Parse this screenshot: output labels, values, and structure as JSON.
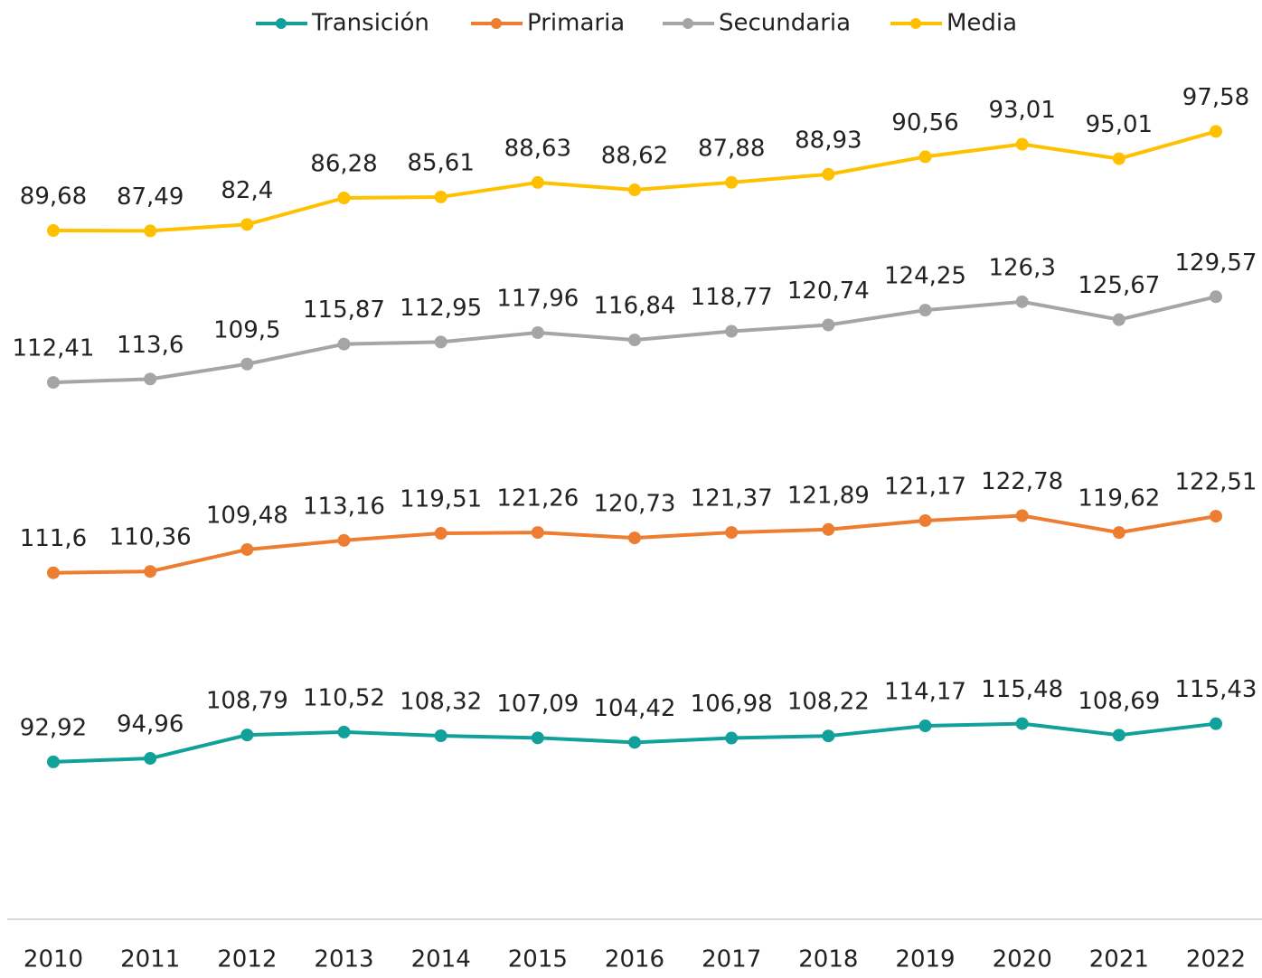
{
  "chart_data": {
    "type": "line",
    "stacked": true,
    "categories": [
      "2010",
      "2011",
      "2012",
      "2013",
      "2014",
      "2015",
      "2016",
      "2017",
      "2018",
      "2019",
      "2020",
      "2021",
      "2022"
    ],
    "ylim": [
      0,
      500
    ],
    "legend": "top",
    "series": [
      {
        "name": "Transición",
        "color": "#12a19a",
        "values": [
          92.92,
          94.96,
          108.79,
          110.52,
          108.32,
          107.09,
          104.42,
          106.98,
          108.22,
          114.17,
          115.48,
          108.69,
          115.43
        ],
        "value_labels": [
          "92,92",
          "94,96",
          "108,79",
          "110,52",
          "108,32",
          "107,09",
          "104,42",
          "106,98",
          "108,22",
          "114,17",
          "115,48",
          "108,69",
          "115,43"
        ]
      },
      {
        "name": "Primaria",
        "color": "#ed7d31",
        "values": [
          111.6,
          110.36,
          109.48,
          113.16,
          119.51,
          121.26,
          120.73,
          121.37,
          121.89,
          121.17,
          122.78,
          119.62,
          122.51
        ],
        "value_labels": [
          "111,6",
          "110,36",
          "109,48",
          "113,16",
          "119,51",
          "121,26",
          "120,73",
          "121,37",
          "121,89",
          "121,17",
          "122,78",
          "119,62",
          "122,51"
        ]
      },
      {
        "name": "Secundaria",
        "color": "#a5a5a5",
        "values": [
          112.41,
          113.6,
          109.5,
          115.87,
          112.95,
          117.96,
          116.84,
          118.77,
          120.74,
          124.25,
          126.3,
          125.67,
          129.57
        ],
        "value_labels": [
          "112,41",
          "113,6",
          "109,5",
          "115,87",
          "112,95",
          "117,96",
          "116,84",
          "118,77",
          "120,74",
          "124,25",
          "126,3",
          "125,67",
          "129,57"
        ]
      },
      {
        "name": "Media",
        "color": "#ffc000",
        "values": [
          89.68,
          87.49,
          82.4,
          86.28,
          85.61,
          88.63,
          88.62,
          87.88,
          88.93,
          90.56,
          93.01,
          95.01,
          97.58
        ],
        "value_labels": [
          "89,68",
          "87,49",
          "82,4",
          "86,28",
          "85,61",
          "88,63",
          "88,62",
          "87,88",
          "88,93",
          "90,56",
          "93,01",
          "95,01",
          "97,58"
        ]
      }
    ]
  }
}
